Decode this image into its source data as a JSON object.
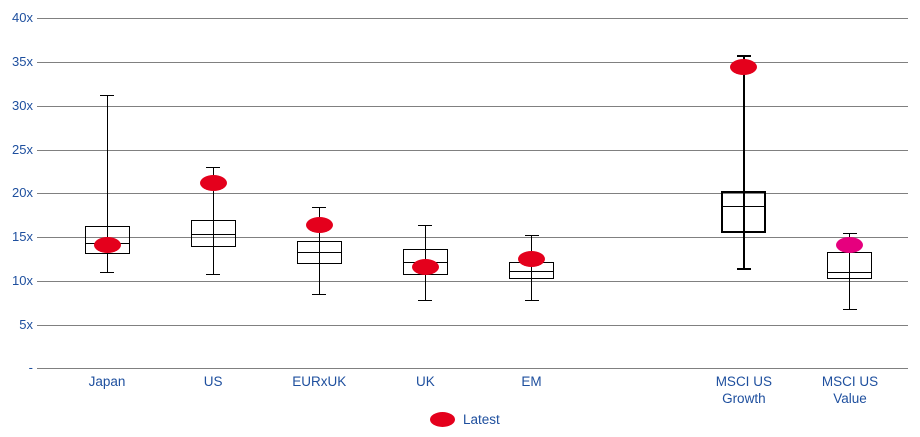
{
  "chart_data": {
    "type": "boxplot",
    "title": "",
    "xlabel": "",
    "ylabel": "",
    "ylim": [
      0,
      40
    ],
    "grid": true,
    "y_axis": {
      "ticks": [
        {
          "label": "40x",
          "value": 40
        },
        {
          "label": "35x",
          "value": 35
        },
        {
          "label": "30x",
          "value": 30
        },
        {
          "label": "25x",
          "value": 25
        },
        {
          "label": "20x",
          "value": 20
        },
        {
          "label": "15x",
          "value": 15
        },
        {
          "label": "10x",
          "value": 10
        },
        {
          "label": "5x",
          "value": 5
        },
        {
          "label": "-",
          "value": 0
        }
      ]
    },
    "legend": {
      "label": "Latest",
      "position": "bottom-center",
      "marker": "oval"
    },
    "series": [
      {
        "category": "Japan",
        "label_lines": [
          "Japan"
        ],
        "slot": 0,
        "low": 10.9,
        "q1": 13.1,
        "median": 14.3,
        "q3": 16.3,
        "high": 31.2,
        "latest": 14.1,
        "latest_color": "#e4001c",
        "emphasis": false
      },
      {
        "category": "US",
        "label_lines": [
          "US"
        ],
        "slot": 1,
        "low": 10.7,
        "q1": 13.9,
        "median": 15.3,
        "q3": 17.0,
        "high": 22.9,
        "latest": 21.2,
        "latest_color": "#e4001c",
        "emphasis": false
      },
      {
        "category": "EURxUK",
        "label_lines": [
          "EURxUK"
        ],
        "slot": 2,
        "low": 8.4,
        "q1": 11.9,
        "median": 13.3,
        "q3": 14.5,
        "high": 18.4,
        "latest": 16.4,
        "latest_color": "#e4001c",
        "emphasis": false
      },
      {
        "category": "UK",
        "label_lines": [
          "UK"
        ],
        "slot": 3,
        "low": 7.8,
        "q1": 10.7,
        "median": 12.1,
        "q3": 13.6,
        "high": 16.3,
        "latest": 11.6,
        "latest_color": "#e4001c",
        "emphasis": false
      },
      {
        "category": "EM",
        "label_lines": [
          "EM"
        ],
        "slot": 4,
        "low": 7.7,
        "q1": 10.2,
        "median": 11.1,
        "q3": 12.2,
        "high": 15.2,
        "latest": 12.5,
        "latest_color": "#e4001c",
        "emphasis": false
      },
      {
        "category": "MSCI US Growth",
        "label_lines": [
          "MSCI US",
          "Growth"
        ],
        "slot": 6,
        "low": 11.3,
        "q1": 15.5,
        "median": 18.5,
        "q3": 20.3,
        "high": 35.7,
        "latest": 34.4,
        "latest_color": "#e4001c",
        "emphasis": true
      },
      {
        "category": "MSCI US Value",
        "label_lines": [
          "MSCI US",
          "Value"
        ],
        "slot": 7,
        "low": 6.7,
        "q1": 10.2,
        "median": 11.0,
        "q3": 13.3,
        "high": 15.4,
        "latest": 14.1,
        "latest_color": "#e6007e",
        "emphasis": false
      }
    ],
    "colors": {
      "latest_default": "#e4001c",
      "latest_msci_value": "#e6007e",
      "axis_text": "#1e4f9e",
      "gridline": "#808080",
      "box_line": "#000000",
      "background": "#ffffff"
    }
  }
}
